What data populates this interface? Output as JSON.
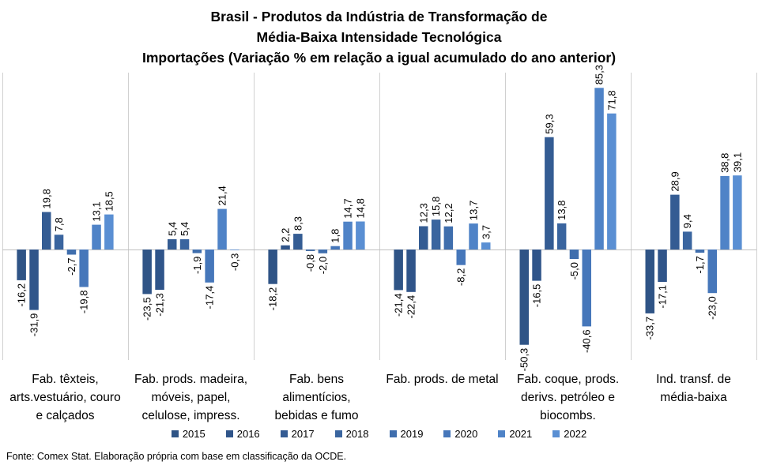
{
  "chart_data": {
    "type": "bar",
    "title": [
      "Brasil - Produtos da Indústria de Transformação de",
      "Média-Baixa Intensidade Tecnológica",
      "Importações (Variação % em relação a igual acumulado do ano anterior)"
    ],
    "xlabel": "",
    "ylabel": "",
    "categories": [
      [
        "Fab. têxteis,",
        "arts.vestuário, couro",
        "e calçados"
      ],
      [
        "Fab. prods. madeira,",
        "móveis, papel,",
        "celulose, impress."
      ],
      [
        "Fab. bens",
        "alimentícios,",
        "bebidas e fumo"
      ],
      [
        "Fab. prods. de metal"
      ],
      [
        "Fab. coque, prods.",
        "derivs. petróleo e",
        "biocombs."
      ],
      [
        "Ind. transf. de",
        "média-baixa"
      ]
    ],
    "series": [
      {
        "name": "2015",
        "color": "#2f5486",
        "values": [
          -16.2,
          -23.5,
          -18.2,
          -21.4,
          -50.3,
          -33.7
        ],
        "labels": [
          "-16,2",
          "-23,5",
          "-18,2",
          "-21,4",
          "-50,3",
          "-33,7"
        ]
      },
      {
        "name": "2016",
        "color": "#30558a",
        "values": [
          -31.9,
          -21.3,
          2.2,
          -22.4,
          -16.5,
          -17.1
        ],
        "labels": [
          "-31,9",
          "-21,3",
          "2,2",
          "-22,4",
          "-16,5",
          "-17,1"
        ]
      },
      {
        "name": "2017",
        "color": "#345c93",
        "values": [
          19.8,
          5.4,
          8.3,
          12.3,
          59.3,
          28.9
        ],
        "labels": [
          "19,8",
          "5,4",
          "8,3",
          "12,3",
          "59,3",
          "28,9"
        ]
      },
      {
        "name": "2018",
        "color": "#3a659f",
        "values": [
          7.8,
          5.4,
          -0.8,
          15.8,
          13.8,
          9.4
        ],
        "labels": [
          "7,8",
          "5,4",
          "-0,8",
          "15,8",
          "13,8",
          "9,4"
        ]
      },
      {
        "name": "2019",
        "color": "#3f6ead",
        "values": [
          -2.7,
          -1.9,
          -2.0,
          12.2,
          -5.0,
          -1.7
        ],
        "labels": [
          "-2,7",
          "-1,9",
          "-2,0",
          "12,2",
          "-5,0",
          "-1,7"
        ]
      },
      {
        "name": "2020",
        "color": "#4677ba",
        "values": [
          -19.8,
          -17.4,
          1.8,
          -8.2,
          -40.6,
          -23.0
        ],
        "labels": [
          "-19,8",
          "-17,4",
          "1,8",
          "-8,2",
          "-40,6",
          "-23,0"
        ]
      },
      {
        "name": "2021",
        "color": "#4f83c7",
        "values": [
          13.1,
          21.4,
          14.7,
          13.7,
          85.3,
          38.8
        ],
        "labels": [
          "13,1",
          "21,4",
          "14,7",
          "13,7",
          "85,3",
          "38,8"
        ]
      },
      {
        "name": "2022",
        "color": "#5a8fd3",
        "values": [
          18.5,
          -0.3,
          14.8,
          3.7,
          71.8,
          39.1
        ],
        "labels": [
          "18,5",
          "-0,3",
          "14,8",
          "3,7",
          "71,8",
          "39,1"
        ]
      }
    ],
    "ylim": [
      -55,
      95
    ],
    "grid": false,
    "legend_position": "bottom"
  },
  "source": "Fonte: Comex Stat. Elaboração própria com base em classificação da OCDE."
}
